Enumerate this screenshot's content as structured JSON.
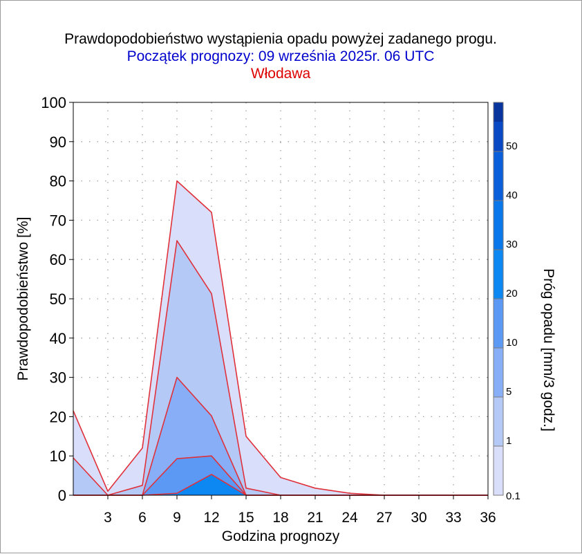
{
  "colors": {
    "title": "#000000",
    "subtitle": "#0000cc",
    "location": "#dd0000",
    "outline": "#e0303a",
    "grid": "#a0a0a0",
    "bands": [
      "#d9defb",
      "#b5c9f6",
      "#87aef6",
      "#5c99f4",
      "#0d87f2",
      "#0a77ea",
      "#0a5fda",
      "#0a49c4",
      "#08349e"
    ]
  },
  "chart_data": {
    "type": "area",
    "title": "Prawdopodobieństwo wystąpienia opadu powyżej zadanego progu.",
    "subtitle": "Początek prognozy: 09 września 2025r. 06 UTC",
    "location": "Włodawa",
    "xlabel": "Godzina prognozy",
    "ylabel": "Prawdopodobieństwo [%]",
    "xlim": [
      0,
      36
    ],
    "ylim": [
      0,
      100
    ],
    "xticks": [
      3,
      6,
      9,
      12,
      15,
      18,
      21,
      24,
      27,
      30,
      33,
      36
    ],
    "yticks": [
      0,
      10,
      20,
      30,
      40,
      50,
      60,
      70,
      80,
      90,
      100
    ],
    "grid": true,
    "x": [
      0,
      3,
      6,
      9,
      12,
      15,
      18,
      21,
      24,
      27,
      30,
      33,
      36
    ],
    "series": [
      {
        "name": "0.1",
        "values": [
          21.5,
          1,
          12,
          80,
          72,
          15,
          4.5,
          1.8,
          0.5,
          0,
          0,
          0,
          0
        ]
      },
      {
        "name": "1",
        "values": [
          9.5,
          0,
          2.5,
          64.8,
          51.3,
          1.8,
          0,
          0,
          0,
          0,
          0,
          0,
          0
        ]
      },
      {
        "name": "5",
        "values": [
          0,
          0,
          0,
          30,
          20.2,
          0,
          0,
          0,
          0,
          0,
          0,
          0,
          0
        ]
      },
      {
        "name": "10",
        "values": [
          0,
          0,
          0,
          9.3,
          10,
          0,
          0,
          0,
          0,
          0,
          0,
          0,
          0
        ]
      },
      {
        "name": "20",
        "values": [
          0,
          0,
          0,
          0.5,
          5.3,
          0,
          0,
          0,
          0,
          0,
          0,
          0,
          0
        ]
      }
    ],
    "colorbar": {
      "label": "Próg opadu [mm/3 godz.]",
      "ticks": [
        "0.1",
        "1",
        "5",
        "10",
        "20",
        "30",
        "40",
        "50"
      ]
    }
  }
}
